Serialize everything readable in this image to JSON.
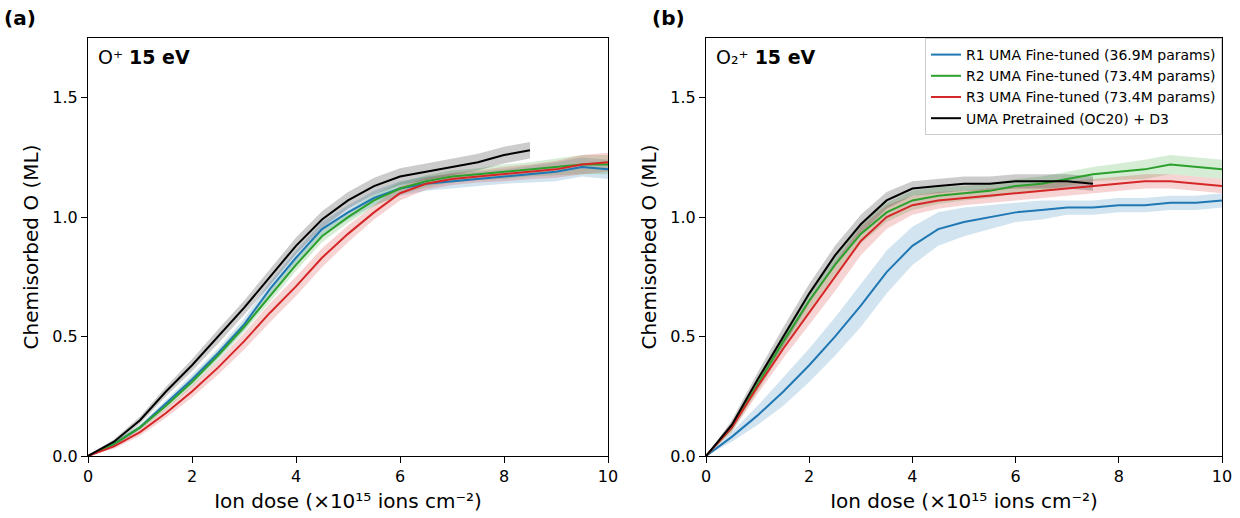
{
  "chart_data": [
    {
      "type": "line",
      "panel_label": "(a)",
      "species": "O⁺",
      "condition": "15 eV",
      "x_label": "Ion dose (×10¹⁵ ions cm⁻²)",
      "y_label": "Chemisorbed O (ML)",
      "xlim": [
        0,
        10
      ],
      "xticks": [
        0,
        2,
        4,
        6,
        8,
        10
      ],
      "ylim": [
        0,
        1.75
      ],
      "yticks": [
        {
          "value": 0,
          "label": "0.0"
        },
        {
          "value": 0.5,
          "label": "0.5"
        },
        {
          "value": 1,
          "label": "1.0"
        },
        {
          "value": 1.5,
          "label": "1.5"
        }
      ],
      "grid": false,
      "legend": false,
      "x": [
        0,
        0.5,
        1,
        1.5,
        2,
        2.5,
        3,
        3.5,
        4,
        4.5,
        5,
        5.5,
        6,
        6.5,
        7,
        7.5,
        8,
        8.5,
        9,
        9.5,
        10
      ],
      "series": [
        {
          "name": "R1 UMA Fine-tuned (36.9M params)",
          "color": "#1f77b4",
          "values": [
            0,
            0.05,
            0.12,
            0.22,
            0.32,
            0.43,
            0.55,
            0.7,
            0.83,
            0.95,
            1.02,
            1.08,
            1.12,
            1.14,
            1.15,
            1.16,
            1.17,
            1.18,
            1.19,
            1.21,
            1.2
          ],
          "error": [
            0,
            0.01,
            0.01,
            0.015,
            0.02,
            0.02,
            0.025,
            0.03,
            0.03,
            0.03,
            0.03,
            0.03,
            0.03,
            0.03,
            0.03,
            0.03,
            0.03,
            0.035,
            0.04,
            0.04,
            0.04
          ]
        },
        {
          "name": "R2 UMA Fine-tuned (73.4M params)",
          "color": "#2ca02c",
          "values": [
            0,
            0.05,
            0.12,
            0.21,
            0.31,
            0.42,
            0.54,
            0.67,
            0.8,
            0.92,
            1.0,
            1.07,
            1.12,
            1.15,
            1.17,
            1.18,
            1.19,
            1.2,
            1.21,
            1.22,
            1.22
          ],
          "error": [
            0,
            0.01,
            0.01,
            0.015,
            0.02,
            0.02,
            0.02,
            0.025,
            0.025,
            0.025,
            0.025,
            0.025,
            0.025,
            0.025,
            0.025,
            0.025,
            0.03,
            0.03,
            0.035,
            0.04,
            0.04
          ]
        },
        {
          "name": "R3 UMA Fine-tuned (73.4M params)",
          "color": "#d62728",
          "values": [
            0,
            0.04,
            0.1,
            0.18,
            0.27,
            0.37,
            0.48,
            0.6,
            0.71,
            0.83,
            0.93,
            1.02,
            1.1,
            1.14,
            1.16,
            1.17,
            1.18,
            1.19,
            1.2,
            1.22,
            1.23
          ],
          "error": [
            0,
            0.01,
            0.015,
            0.02,
            0.025,
            0.03,
            0.035,
            0.04,
            0.04,
            0.04,
            0.035,
            0.03,
            0.03,
            0.025,
            0.025,
            0.025,
            0.03,
            0.03,
            0.035,
            0.04,
            0.04
          ]
        },
        {
          "name": "UMA Pretrained (OC20) + D3",
          "color": "#000000",
          "values": [
            0,
            0.06,
            0.15,
            0.27,
            0.38,
            0.5,
            0.62,
            0.75,
            0.88,
            0.99,
            1.07,
            1.13,
            1.17,
            1.19,
            1.21,
            1.23,
            1.26,
            1.28,
            null,
            null,
            null
          ],
          "error": [
            0,
            0.01,
            0.015,
            0.02,
            0.025,
            0.03,
            0.03,
            0.035,
            0.035,
            0.035,
            0.035,
            0.035,
            0.035,
            0.035,
            0.035,
            0.035,
            0.035,
            0.035,
            null,
            null,
            null
          ]
        }
      ]
    },
    {
      "type": "line",
      "panel_label": "(b)",
      "species": "O₂⁺",
      "condition": "15 eV",
      "x_label": "Ion dose (×10¹⁵ ions cm⁻²)",
      "y_label": "Chemisorbed O (ML)",
      "xlim": [
        0,
        10
      ],
      "xticks": [
        0,
        2,
        4,
        6,
        8,
        10
      ],
      "ylim": [
        0,
        1.75
      ],
      "yticks": [
        {
          "value": 0,
          "label": "0.0"
        },
        {
          "value": 0.5,
          "label": "0.5"
        },
        {
          "value": 1,
          "label": "1.0"
        },
        {
          "value": 1.5,
          "label": "1.5"
        }
      ],
      "grid": false,
      "legend": "upper right",
      "x": [
        0,
        0.5,
        1,
        1.5,
        2,
        2.5,
        3,
        3.5,
        4,
        4.5,
        5,
        5.5,
        6,
        6.5,
        7,
        7.5,
        8,
        8.5,
        9,
        9.5,
        10
      ],
      "series": [
        {
          "name": "R1 UMA Fine-tuned (36.9M params)",
          "color": "#1f77b4",
          "values": [
            0,
            0.08,
            0.17,
            0.27,
            0.38,
            0.5,
            0.63,
            0.77,
            0.88,
            0.95,
            0.98,
            1.0,
            1.02,
            1.03,
            1.04,
            1.04,
            1.05,
            1.05,
            1.06,
            1.06,
            1.07
          ],
          "error": [
            0,
            0.02,
            0.04,
            0.06,
            0.07,
            0.08,
            0.09,
            0.09,
            0.08,
            0.07,
            0.06,
            0.05,
            0.04,
            0.04,
            0.03,
            0.03,
            0.03,
            0.03,
            0.03,
            0.03,
            0.03
          ]
        },
        {
          "name": "R2 UMA Fine-tuned (73.4M params)",
          "color": "#2ca02c",
          "values": [
            0,
            0.12,
            0.3,
            0.48,
            0.65,
            0.8,
            0.93,
            1.02,
            1.07,
            1.09,
            1.1,
            1.11,
            1.13,
            1.14,
            1.16,
            1.18,
            1.19,
            1.2,
            1.22,
            1.21,
            1.2
          ],
          "error": [
            0,
            0.02,
            0.03,
            0.035,
            0.04,
            0.04,
            0.04,
            0.04,
            0.04,
            0.035,
            0.03,
            0.03,
            0.03,
            0.03,
            0.03,
            0.03,
            0.035,
            0.04,
            0.04,
            0.04,
            0.04
          ]
        },
        {
          "name": "R3 UMA Fine-tuned (73.4M params)",
          "color": "#d62728",
          "values": [
            0,
            0.12,
            0.29,
            0.45,
            0.6,
            0.75,
            0.9,
            1.0,
            1.05,
            1.07,
            1.08,
            1.09,
            1.1,
            1.11,
            1.12,
            1.13,
            1.14,
            1.15,
            1.15,
            1.14,
            1.13
          ],
          "error": [
            0,
            0.02,
            0.03,
            0.04,
            0.05,
            0.06,
            0.06,
            0.05,
            0.04,
            0.035,
            0.03,
            0.03,
            0.03,
            0.03,
            0.03,
            0.03,
            0.03,
            0.03,
            0.03,
            0.03,
            0.03
          ]
        },
        {
          "name": "UMA Pretrained (OC20) + D3",
          "color": "#000000",
          "values": [
            0,
            0.13,
            0.32,
            0.5,
            0.68,
            0.84,
            0.97,
            1.07,
            1.12,
            1.13,
            1.14,
            1.14,
            1.15,
            1.15,
            1.15,
            1.14,
            null,
            null,
            null,
            null,
            null
          ],
          "error": [
            0,
            0.02,
            0.03,
            0.04,
            0.04,
            0.04,
            0.04,
            0.035,
            0.03,
            0.03,
            0.03,
            0.03,
            0.03,
            0.03,
            0.03,
            0.03,
            null,
            null,
            null,
            null,
            null
          ]
        }
      ]
    }
  ]
}
